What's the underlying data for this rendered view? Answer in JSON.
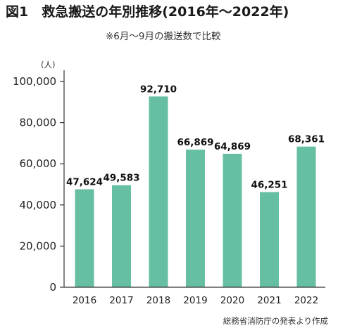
{
  "figure": {
    "title": "図1　救急搬送の年別推移(2016年〜2022年)",
    "subtitle": "※6月〜9月の搬送数で比較",
    "unit": "(人)",
    "source": "総務省消防庁の発表より作成"
  },
  "chart_data": {
    "type": "bar",
    "categories": [
      "2016",
      "2017",
      "2018",
      "2019",
      "2020",
      "2021",
      "2022"
    ],
    "values": [
      47624,
      49583,
      92710,
      66869,
      64869,
      46251,
      68361
    ],
    "value_labels": [
      "47,624",
      "49,583",
      "92,710",
      "66,869",
      "64,869",
      "46,251",
      "68,361"
    ],
    "yticks": [
      0,
      20000,
      40000,
      60000,
      80000,
      100000
    ],
    "ytick_labels": [
      "0",
      "20,000",
      "40,000",
      "60,000",
      "80,000",
      "100,000"
    ],
    "ylim": [
      0,
      100000
    ],
    "bar_color": "#66bfa3",
    "grid": false
  }
}
